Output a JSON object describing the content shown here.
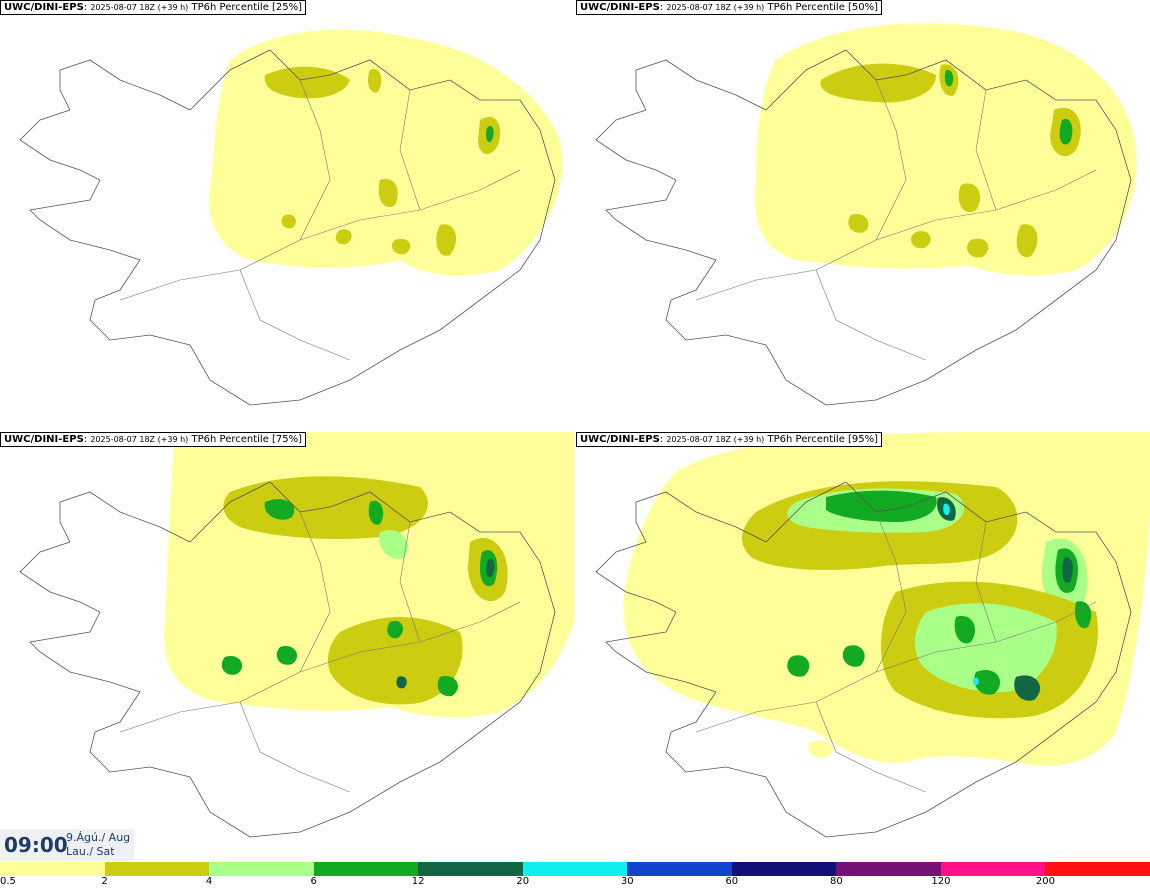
{
  "panels": [
    {
      "model": "UWC/DINI-EPS",
      "run": "2025-08-07 18Z (+39 h)",
      "field": "TP6h Percentile [25%]"
    },
    {
      "model": "UWC/DINI-EPS",
      "run": "2025-08-07 18Z (+39 h)",
      "field": "TP6h Percentile [50%]"
    },
    {
      "model": "UWC/DINI-EPS",
      "run": "2025-08-07 18Z (+39 h)",
      "field": "TP6h Percentile [75%]"
    },
    {
      "model": "UWC/DINI-EPS",
      "run": "2025-08-07 18Z (+39 h)",
      "field": "TP6h Percentile [95%]"
    }
  ],
  "valid_time": {
    "time": "09:00",
    "date_line1": "9.Ágú./ Aug",
    "date_line2": "Lau./ Sat"
  },
  "legend": {
    "colors": [
      "#ffff99",
      "#cccc11",
      "#aaff88",
      "#11aa22",
      "#116644",
      "#11eeee",
      "#1144cc",
      "#111177",
      "#771177",
      "#ff1188",
      "#ff1111"
    ],
    "ticks": [
      "0.5",
      "2",
      "4",
      "6",
      "12",
      "20",
      "30",
      "60",
      "80",
      "120",
      "200"
    ]
  }
}
